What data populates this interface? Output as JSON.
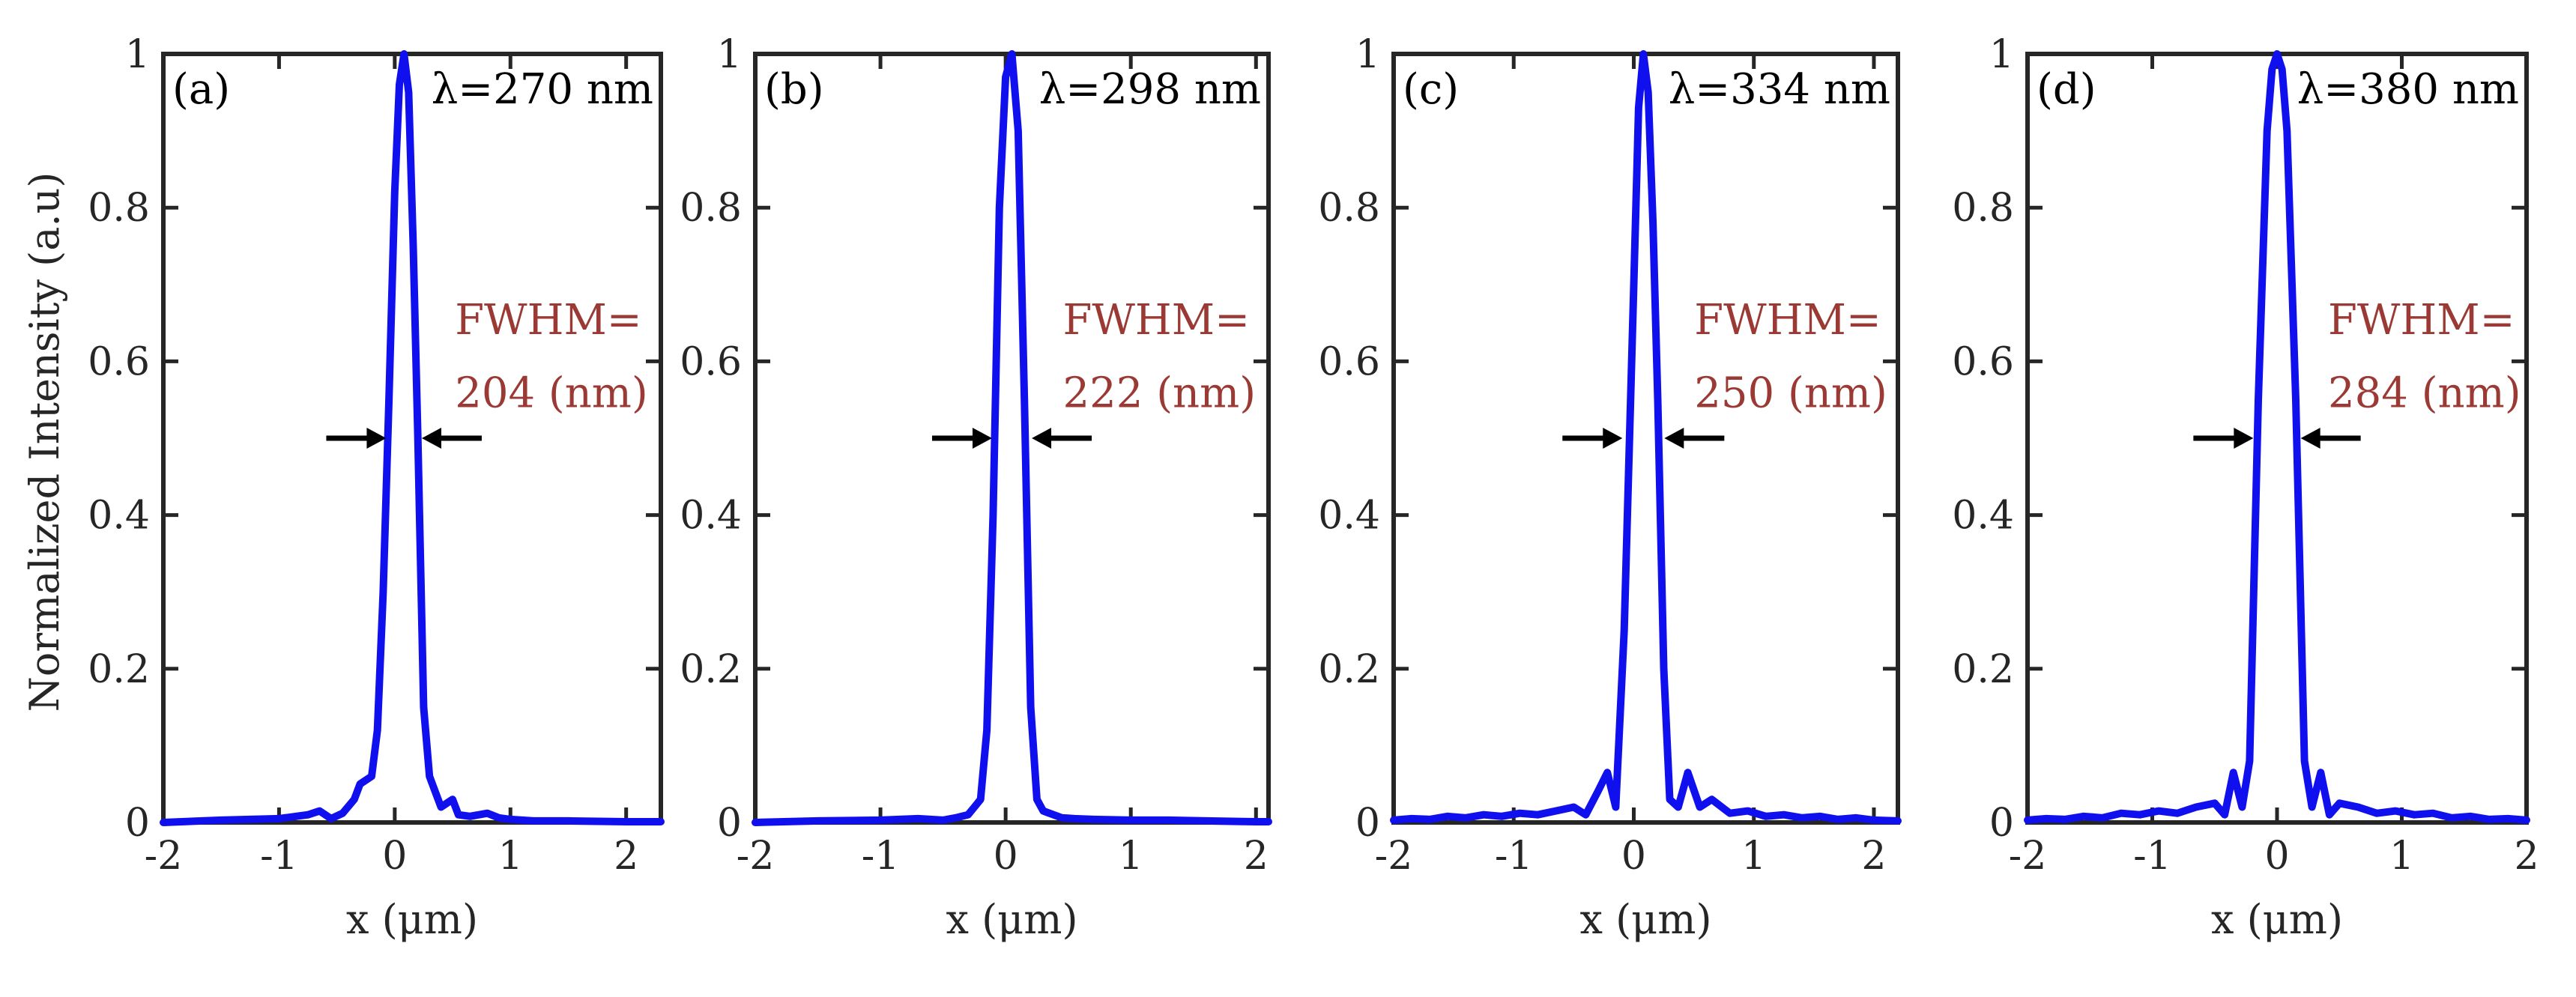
{
  "figure": {
    "ylabel": "Normalized Intensity (a.u)",
    "xlabel": "x (μm)",
    "colors": {
      "curve": "#1010ee",
      "fwhm_text": "#9b3a35",
      "axes": "#262626"
    }
  },
  "chart_data": [
    {
      "type": "line",
      "panel": "(a)",
      "lambda_text": "λ=270 nm",
      "fwhm_label_1": "FWHM=",
      "fwhm_label_2": "204 (nm)",
      "fwhm_nm": 204,
      "wavelength_nm": 270,
      "xlabel": "x (μm)",
      "ylabel": "Normalized Intensity (a.u)",
      "xlim": [
        -2,
        2.3
      ],
      "ylim": [
        0,
        1
      ],
      "xticks": [
        -2,
        -1,
        0,
        1,
        2
      ],
      "xtick_labels": [
        "-2",
        "-1",
        "0",
        "1",
        "2"
      ],
      "yticks": [
        0,
        0.2,
        0.4,
        0.6,
        0.8,
        1
      ],
      "ytick_labels": [
        "0",
        "0.2",
        "0.4",
        "0.6",
        "0.8",
        "1"
      ],
      "peak_x": 0.08,
      "x": [
        -2,
        -1.5,
        -1.0,
        -0.75,
        -0.65,
        -0.55,
        -0.45,
        -0.35,
        -0.3,
        -0.25,
        -0.2,
        -0.15,
        -0.1,
        -0.05,
        0.0,
        0.04,
        0.08,
        0.12,
        0.16,
        0.2,
        0.25,
        0.3,
        0.35,
        0.4,
        0.45,
        0.5,
        0.55,
        0.65,
        0.8,
        0.9,
        1.0,
        1.2,
        1.5,
        2.0,
        2.3
      ],
      "y": [
        0,
        0.003,
        0.005,
        0.01,
        0.015,
        0.005,
        0.012,
        0.03,
        0.05,
        0.055,
        0.06,
        0.12,
        0.3,
        0.55,
        0.82,
        0.96,
        1.0,
        0.95,
        0.75,
        0.5,
        0.15,
        0.06,
        0.04,
        0.02,
        0.025,
        0.03,
        0.01,
        0.008,
        0.012,
        0.006,
        0.004,
        0.002,
        0.002,
        0.001,
        0.001
      ]
    },
    {
      "type": "line",
      "panel": "(b)",
      "lambda_text": "λ=298 nm",
      "fwhm_label_1": "FWHM=",
      "fwhm_label_2": "222 (nm)",
      "fwhm_nm": 222,
      "wavelength_nm": 298,
      "xlabel": "x (μm)",
      "ylabel": "Normalized Intensity (a.u)",
      "xlim": [
        -2,
        2.1
      ],
      "ylim": [
        0,
        1
      ],
      "xticks": [
        -2,
        -1,
        0,
        1,
        2
      ],
      "xtick_labels": [
        "-2",
        "-1",
        "0",
        "1",
        "2"
      ],
      "yticks": [
        0,
        0.2,
        0.4,
        0.6,
        0.8,
        1
      ],
      "ytick_labels": [
        "0",
        "0.2",
        "0.4",
        "0.6",
        "0.8",
        "1"
      ],
      "peak_x": 0.05,
      "x": [
        -2,
        -1.5,
        -1.0,
        -0.7,
        -0.5,
        -0.4,
        -0.3,
        -0.25,
        -0.2,
        -0.15,
        -0.1,
        -0.05,
        0.0,
        0.05,
        0.1,
        0.15,
        0.2,
        0.25,
        0.3,
        0.35,
        0.45,
        0.55,
        0.7,
        1.0,
        1.3,
        1.6,
        2.0,
        2.1
      ],
      "y": [
        0,
        0.002,
        0.003,
        0.005,
        0.003,
        0.006,
        0.01,
        0.02,
        0.03,
        0.12,
        0.4,
        0.8,
        0.97,
        1.0,
        0.9,
        0.55,
        0.15,
        0.03,
        0.015,
        0.012,
        0.006,
        0.005,
        0.004,
        0.003,
        0.003,
        0.002,
        0.001,
        0.001
      ]
    },
    {
      "type": "line",
      "panel": "(c)",
      "lambda_text": "λ=334 nm",
      "fwhm_label_1": "FWHM=",
      "fwhm_label_2": "250 (nm)",
      "fwhm_nm": 250,
      "wavelength_nm": 334,
      "xlabel": "x (μm)",
      "ylabel": "Normalized Intensity (a.u)",
      "xlim": [
        -2,
        2.2
      ],
      "ylim": [
        0,
        1
      ],
      "xticks": [
        -2,
        -1,
        0,
        1,
        2
      ],
      "xtick_labels": [
        "-2",
        "-1",
        "0",
        "1",
        "2"
      ],
      "yticks": [
        0,
        0.2,
        0.4,
        0.6,
        0.8,
        1
      ],
      "ytick_labels": [
        "0",
        "0.2",
        "0.4",
        "0.6",
        "0.8",
        "1"
      ],
      "peak_x": 0.08,
      "x": [
        -2.0,
        -1.85,
        -1.7,
        -1.55,
        -1.4,
        -1.25,
        -1.1,
        -0.95,
        -0.8,
        -0.65,
        -0.5,
        -0.4,
        -0.3,
        -0.22,
        -0.15,
        -0.08,
        0.0,
        0.04,
        0.08,
        0.12,
        0.16,
        0.2,
        0.25,
        0.3,
        0.37,
        0.45,
        0.55,
        0.65,
        0.8,
        0.95,
        1.1,
        1.25,
        1.4,
        1.55,
        1.7,
        1.85,
        2.0,
        2.2
      ],
      "y": [
        0.003,
        0.005,
        0.004,
        0.008,
        0.006,
        0.01,
        0.008,
        0.012,
        0.01,
        0.015,
        0.02,
        0.01,
        0.04,
        0.065,
        0.02,
        0.25,
        0.7,
        0.93,
        1.0,
        0.95,
        0.78,
        0.55,
        0.2,
        0.03,
        0.02,
        0.065,
        0.02,
        0.03,
        0.012,
        0.015,
        0.008,
        0.01,
        0.006,
        0.008,
        0.004,
        0.006,
        0.003,
        0.002
      ]
    },
    {
      "type": "line",
      "panel": "(d)",
      "lambda_text": "λ=380 nm",
      "fwhm_label_1": "FWHM=",
      "fwhm_label_2": "284 (nm)",
      "fwhm_nm": 284,
      "wavelength_nm": 380,
      "xlabel": "x (μm)",
      "ylabel": "Normalized Intensity (a.u)",
      "xlim": [
        -2,
        2
      ],
      "ylim": [
        0,
        1
      ],
      "xticks": [
        -2,
        -1,
        0,
        1,
        2
      ],
      "xtick_labels": [
        "-2",
        "-1",
        "0",
        "1",
        "2"
      ],
      "yticks": [
        0,
        0.2,
        0.4,
        0.6,
        0.8,
        1
      ],
      "ytick_labels": [
        "0",
        "0.2",
        "0.4",
        "0.6",
        "0.8",
        "1"
      ],
      "peak_x": 0.0,
      "x": [
        -2.0,
        -1.85,
        -1.7,
        -1.55,
        -1.4,
        -1.25,
        -1.1,
        -0.95,
        -0.8,
        -0.65,
        -0.5,
        -0.42,
        -0.35,
        -0.28,
        -0.22,
        -0.15,
        -0.08,
        -0.04,
        0.0,
        0.04,
        0.08,
        0.15,
        0.22,
        0.28,
        0.35,
        0.42,
        0.5,
        0.65,
        0.8,
        0.95,
        1.1,
        1.25,
        1.4,
        1.55,
        1.7,
        1.85,
        2.0
      ],
      "y": [
        0.003,
        0.005,
        0.004,
        0.008,
        0.006,
        0.012,
        0.01,
        0.015,
        0.012,
        0.02,
        0.025,
        0.01,
        0.065,
        0.02,
        0.08,
        0.55,
        0.9,
        0.98,
        1.0,
        0.98,
        0.9,
        0.55,
        0.08,
        0.02,
        0.065,
        0.01,
        0.025,
        0.02,
        0.012,
        0.015,
        0.01,
        0.012,
        0.006,
        0.008,
        0.004,
        0.005,
        0.003
      ]
    }
  ]
}
